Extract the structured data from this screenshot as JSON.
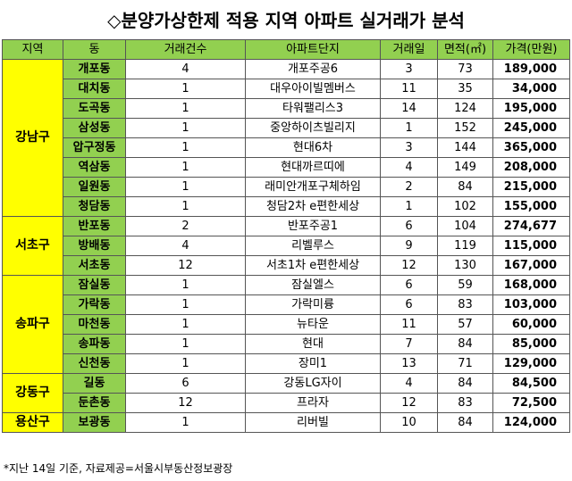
{
  "title": "◇분양가상한제 적용 지역 아파트 실거래가 분석",
  "headers": [
    "지역",
    "동",
    "거래건수",
    "아파트단지",
    "거래일",
    "면적(㎡)",
    "가격(만원)"
  ],
  "groups": [
    {
      "region": "강남구",
      "rows": [
        {
          "dong": "개포동",
          "count": "4",
          "complex": "개포주공6",
          "day": "3",
          "area": "73",
          "price": "189,000"
        },
        {
          "dong": "대치동",
          "count": "1",
          "complex": "대우아이빌멤버스",
          "day": "11",
          "area": "35",
          "price": "34,000"
        },
        {
          "dong": "도곡동",
          "count": "1",
          "complex": "타워팰리스3",
          "day": "14",
          "area": "124",
          "price": "195,000"
        },
        {
          "dong": "삼성동",
          "count": "1",
          "complex": "중앙하이츠빌리지",
          "day": "1",
          "area": "152",
          "price": "245,000"
        },
        {
          "dong": "압구정동",
          "count": "1",
          "complex": "현대6차",
          "day": "3",
          "area": "144",
          "price": "365,000"
        },
        {
          "dong": "역삼동",
          "count": "1",
          "complex": "현대까르띠에",
          "day": "4",
          "area": "149",
          "price": "208,000"
        },
        {
          "dong": "일원동",
          "count": "1",
          "complex": "래미안개포구체하임",
          "day": "2",
          "area": "84",
          "price": "215,000"
        },
        {
          "dong": "청담동",
          "count": "1",
          "complex": "청담2차 e편한세상",
          "day": "1",
          "area": "102",
          "price": "155,000"
        }
      ]
    },
    {
      "region": "서초구",
      "rows": [
        {
          "dong": "반포동",
          "count": "2",
          "complex": "반포주공1",
          "day": "6",
          "area": "104",
          "price": "274,677"
        },
        {
          "dong": "방배동",
          "count": "4",
          "complex": "리벨루스",
          "day": "9",
          "area": "119",
          "price": "115,000"
        },
        {
          "dong": "서초동",
          "count": "12",
          "complex": "서초1차 e편한세상",
          "day": "12",
          "area": "130",
          "price": "167,000"
        }
      ]
    },
    {
      "region": "송파구",
      "rows": [
        {
          "dong": "잠실동",
          "count": "1",
          "complex": "잠실엘스",
          "day": "6",
          "area": "59",
          "price": "168,000"
        },
        {
          "dong": "가락동",
          "count": "1",
          "complex": "가락미륭",
          "day": "6",
          "area": "83",
          "price": "103,000"
        },
        {
          "dong": "마천동",
          "count": "1",
          "complex": "뉴타운",
          "day": "11",
          "area": "57",
          "price": "60,000"
        },
        {
          "dong": "송파동",
          "count": "1",
          "complex": "현대",
          "day": "7",
          "area": "84",
          "price": "85,000"
        },
        {
          "dong": "신천동",
          "count": "1",
          "complex": "장미1",
          "day": "13",
          "area": "71",
          "price": "129,000"
        }
      ]
    },
    {
      "region": "강동구",
      "rows": [
        {
          "dong": "길동",
          "count": "6",
          "complex": "강동LG자이",
          "day": "4",
          "area": "84",
          "price": "84,500"
        },
        {
          "dong": "둔촌동",
          "count": "12",
          "complex": "프라자",
          "day": "12",
          "area": "83",
          "price": "72,500"
        }
      ]
    },
    {
      "region": "용산구",
      "rows": [
        {
          "dong": "보광동",
          "count": "1",
          "complex": "리버빌",
          "day": "10",
          "area": "84",
          "price": "124,000"
        }
      ]
    }
  ],
  "footnote": "*지난 14일 기준, 자료제공=서울시부동산정보광장",
  "colors": {
    "header_bg": "#92d050",
    "region_bg": "#ffff00",
    "dong_bg": "#92d050"
  }
}
